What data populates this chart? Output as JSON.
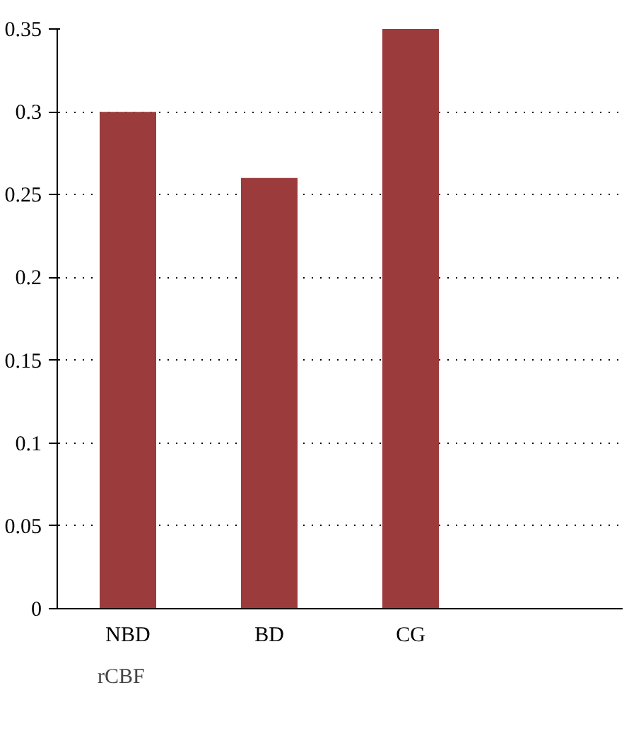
{
  "chart_data": {
    "type": "bar",
    "categories": [
      "NBD",
      "BD",
      "CG",
      null
    ],
    "series": [
      {
        "name": "rCBF",
        "color": "#9b3b3b",
        "values": [
          0.3,
          0.26,
          0.35,
          null
        ]
      }
    ],
    "ylim": [
      0,
      0.35
    ],
    "yticks": [
      0,
      0.05,
      0.1,
      0.15,
      0.2,
      0.25,
      0.3,
      0.35
    ],
    "grid": "y",
    "legend": "bottom left"
  }
}
